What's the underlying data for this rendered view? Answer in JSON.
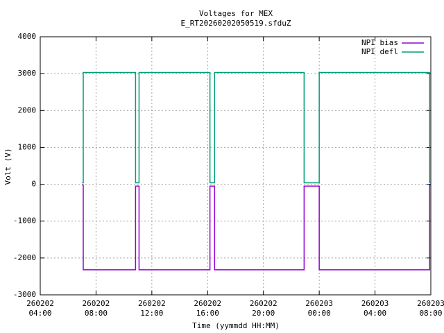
{
  "chart_data": {
    "type": "line",
    "title": "Voltages for MEX",
    "subtitle": "E_RT20260202050519.sfduZ",
    "x_label": "Time (yymmdd HH:MM)",
    "y_label": "Volt (V)",
    "x": [
      "260202 07:00",
      "260202 07:05",
      "260202 07:05",
      "260202 10:50",
      "260202 10:50",
      "260202 11:05",
      "260202 11:05",
      "260202 16:10",
      "260202 16:10",
      "260202 16:30",
      "260202 16:30",
      "260202 22:55",
      "260202 22:55",
      "260203 00:00",
      "260203 00:00",
      "260203 07:55",
      "260203 07:55",
      "260203 08:00"
    ],
    "series": [
      {
        "name": "NPI bias",
        "color": "#9400d3",
        "values": [
          -20,
          -20,
          -2320,
          -2320,
          -50,
          -50,
          -2320,
          -2320,
          -50,
          -50,
          -2320,
          -2320,
          -50,
          -50,
          -2320,
          -2320,
          -20,
          -20
        ]
      },
      {
        "name": "NPI defl",
        "color": "#009e73",
        "values": [
          40,
          40,
          3030,
          3030,
          40,
          40,
          3030,
          3030,
          40,
          40,
          3030,
          3030,
          40,
          40,
          3030,
          3030,
          40,
          40
        ]
      }
    ],
    "xlim": [
      "260202 04:00",
      "260203 08:00"
    ],
    "xticks": [
      "260202 04:00",
      "260202 08:00",
      "260202 12:00",
      "260202 16:00",
      "260202 20:00",
      "260203 00:00",
      "260203 04:00",
      "260203 08:00"
    ],
    "ylim": [
      -3000,
      4000
    ],
    "yticks": [
      -3000,
      -2000,
      -1000,
      0,
      1000,
      2000,
      3000,
      4000
    ],
    "grid": true,
    "legend": "top-right"
  }
}
